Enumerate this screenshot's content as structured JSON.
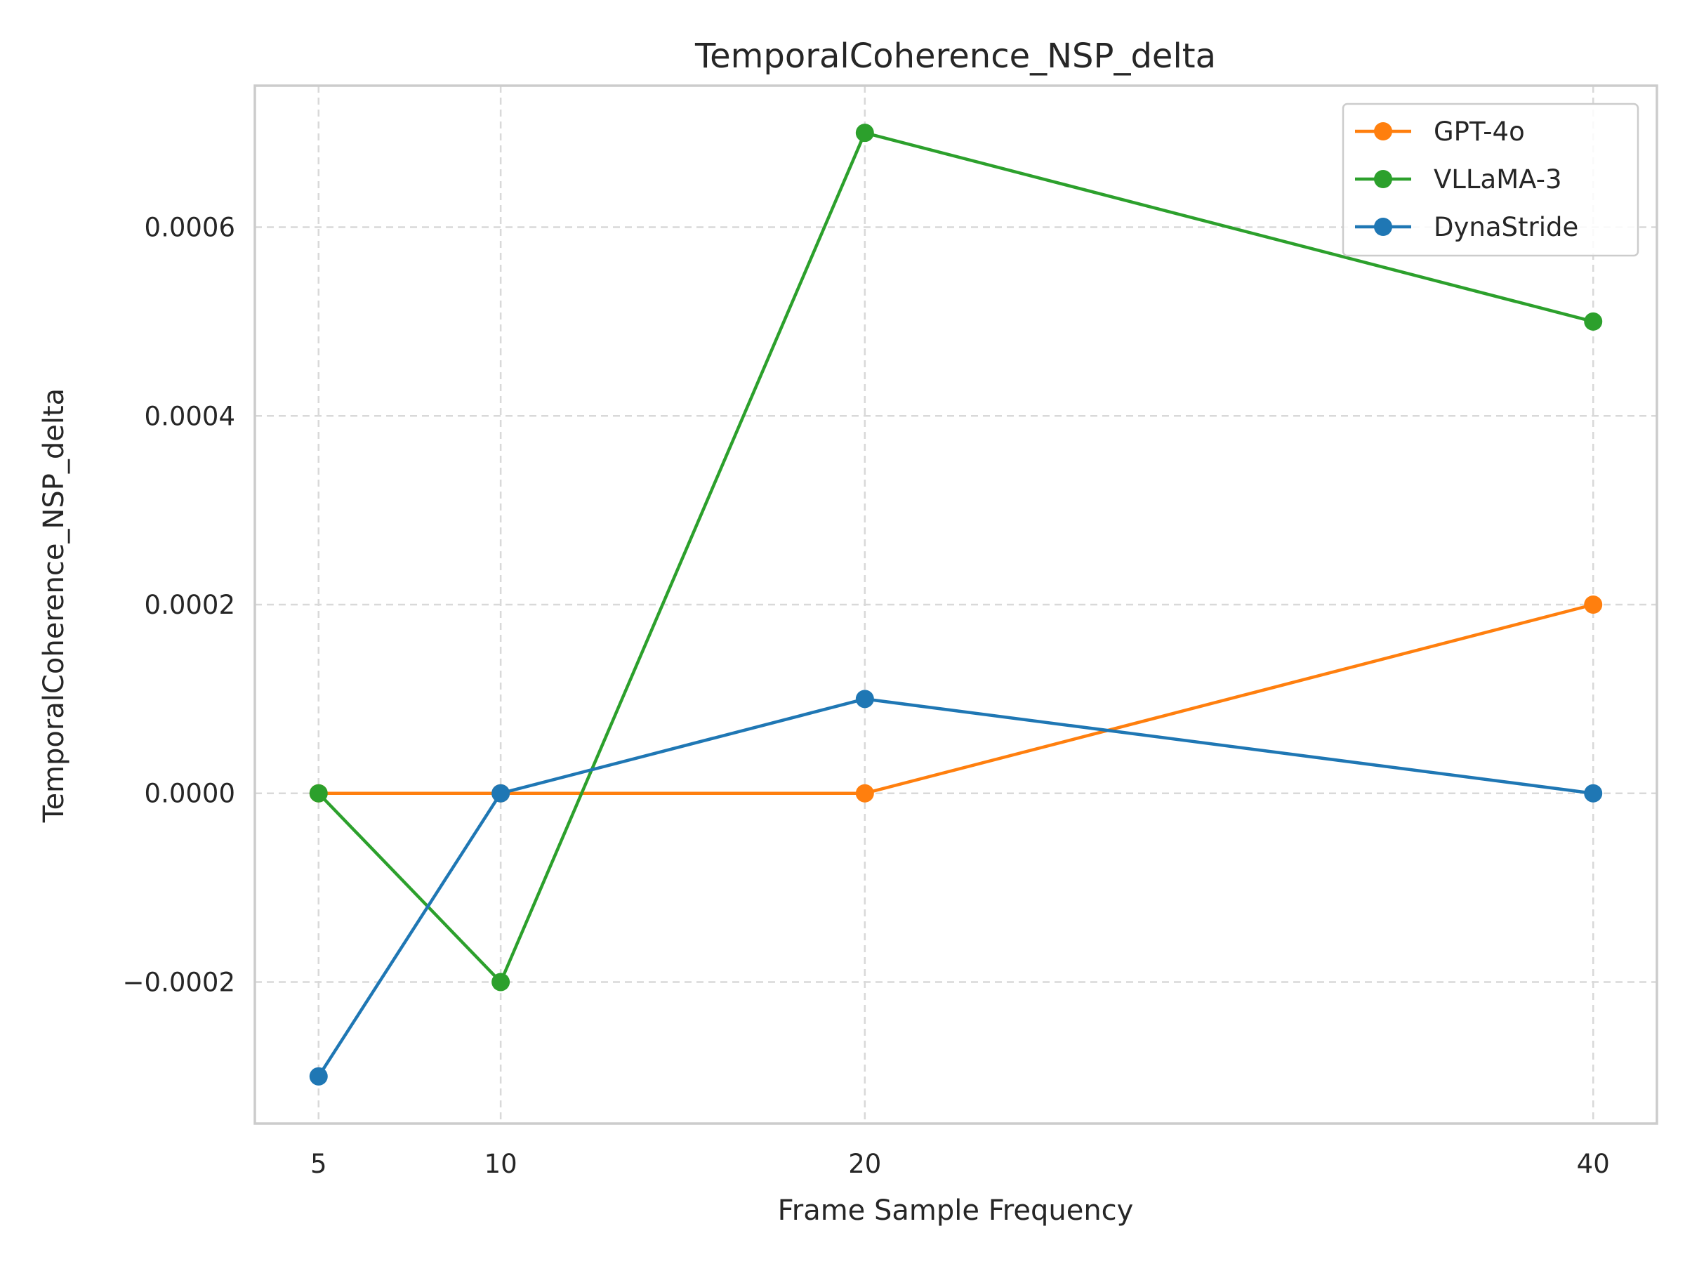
{
  "chart_data": {
    "type": "line",
    "title": "TemporalCoherence_NSP_delta",
    "xlabel": "Frame Sample Frequency",
    "ylabel": "TemporalCoherence_NSP_delta",
    "x": [
      5,
      10,
      20,
      40
    ],
    "xlim": [
      3.25,
      41.75
    ],
    "ylim": [
      -0.00035,
      0.00075
    ],
    "xticks": [
      5,
      10,
      20,
      40
    ],
    "xtick_labels": [
      "5",
      "10",
      "20",
      "40"
    ],
    "yticks": [
      -0.0002,
      0.0,
      0.0002,
      0.0004,
      0.0006
    ],
    "ytick_labels": [
      "−0.0002",
      "0.0000",
      "0.0002",
      "0.0004",
      "0.0006"
    ],
    "grid": true,
    "legend_position": "top-right",
    "series": [
      {
        "name": "GPT-4o",
        "color": "#ff7f0e",
        "values": [
          0.0,
          0.0,
          0.0,
          0.0002
        ]
      },
      {
        "name": "VLLaMA-3",
        "color": "#2ca02c",
        "values": [
          0.0,
          -0.0002,
          0.0007,
          0.0005
        ]
      },
      {
        "name": "DynaStride",
        "color": "#1f77b4",
        "values": [
          -0.0003,
          0.0,
          0.0001,
          0.0
        ]
      }
    ]
  }
}
